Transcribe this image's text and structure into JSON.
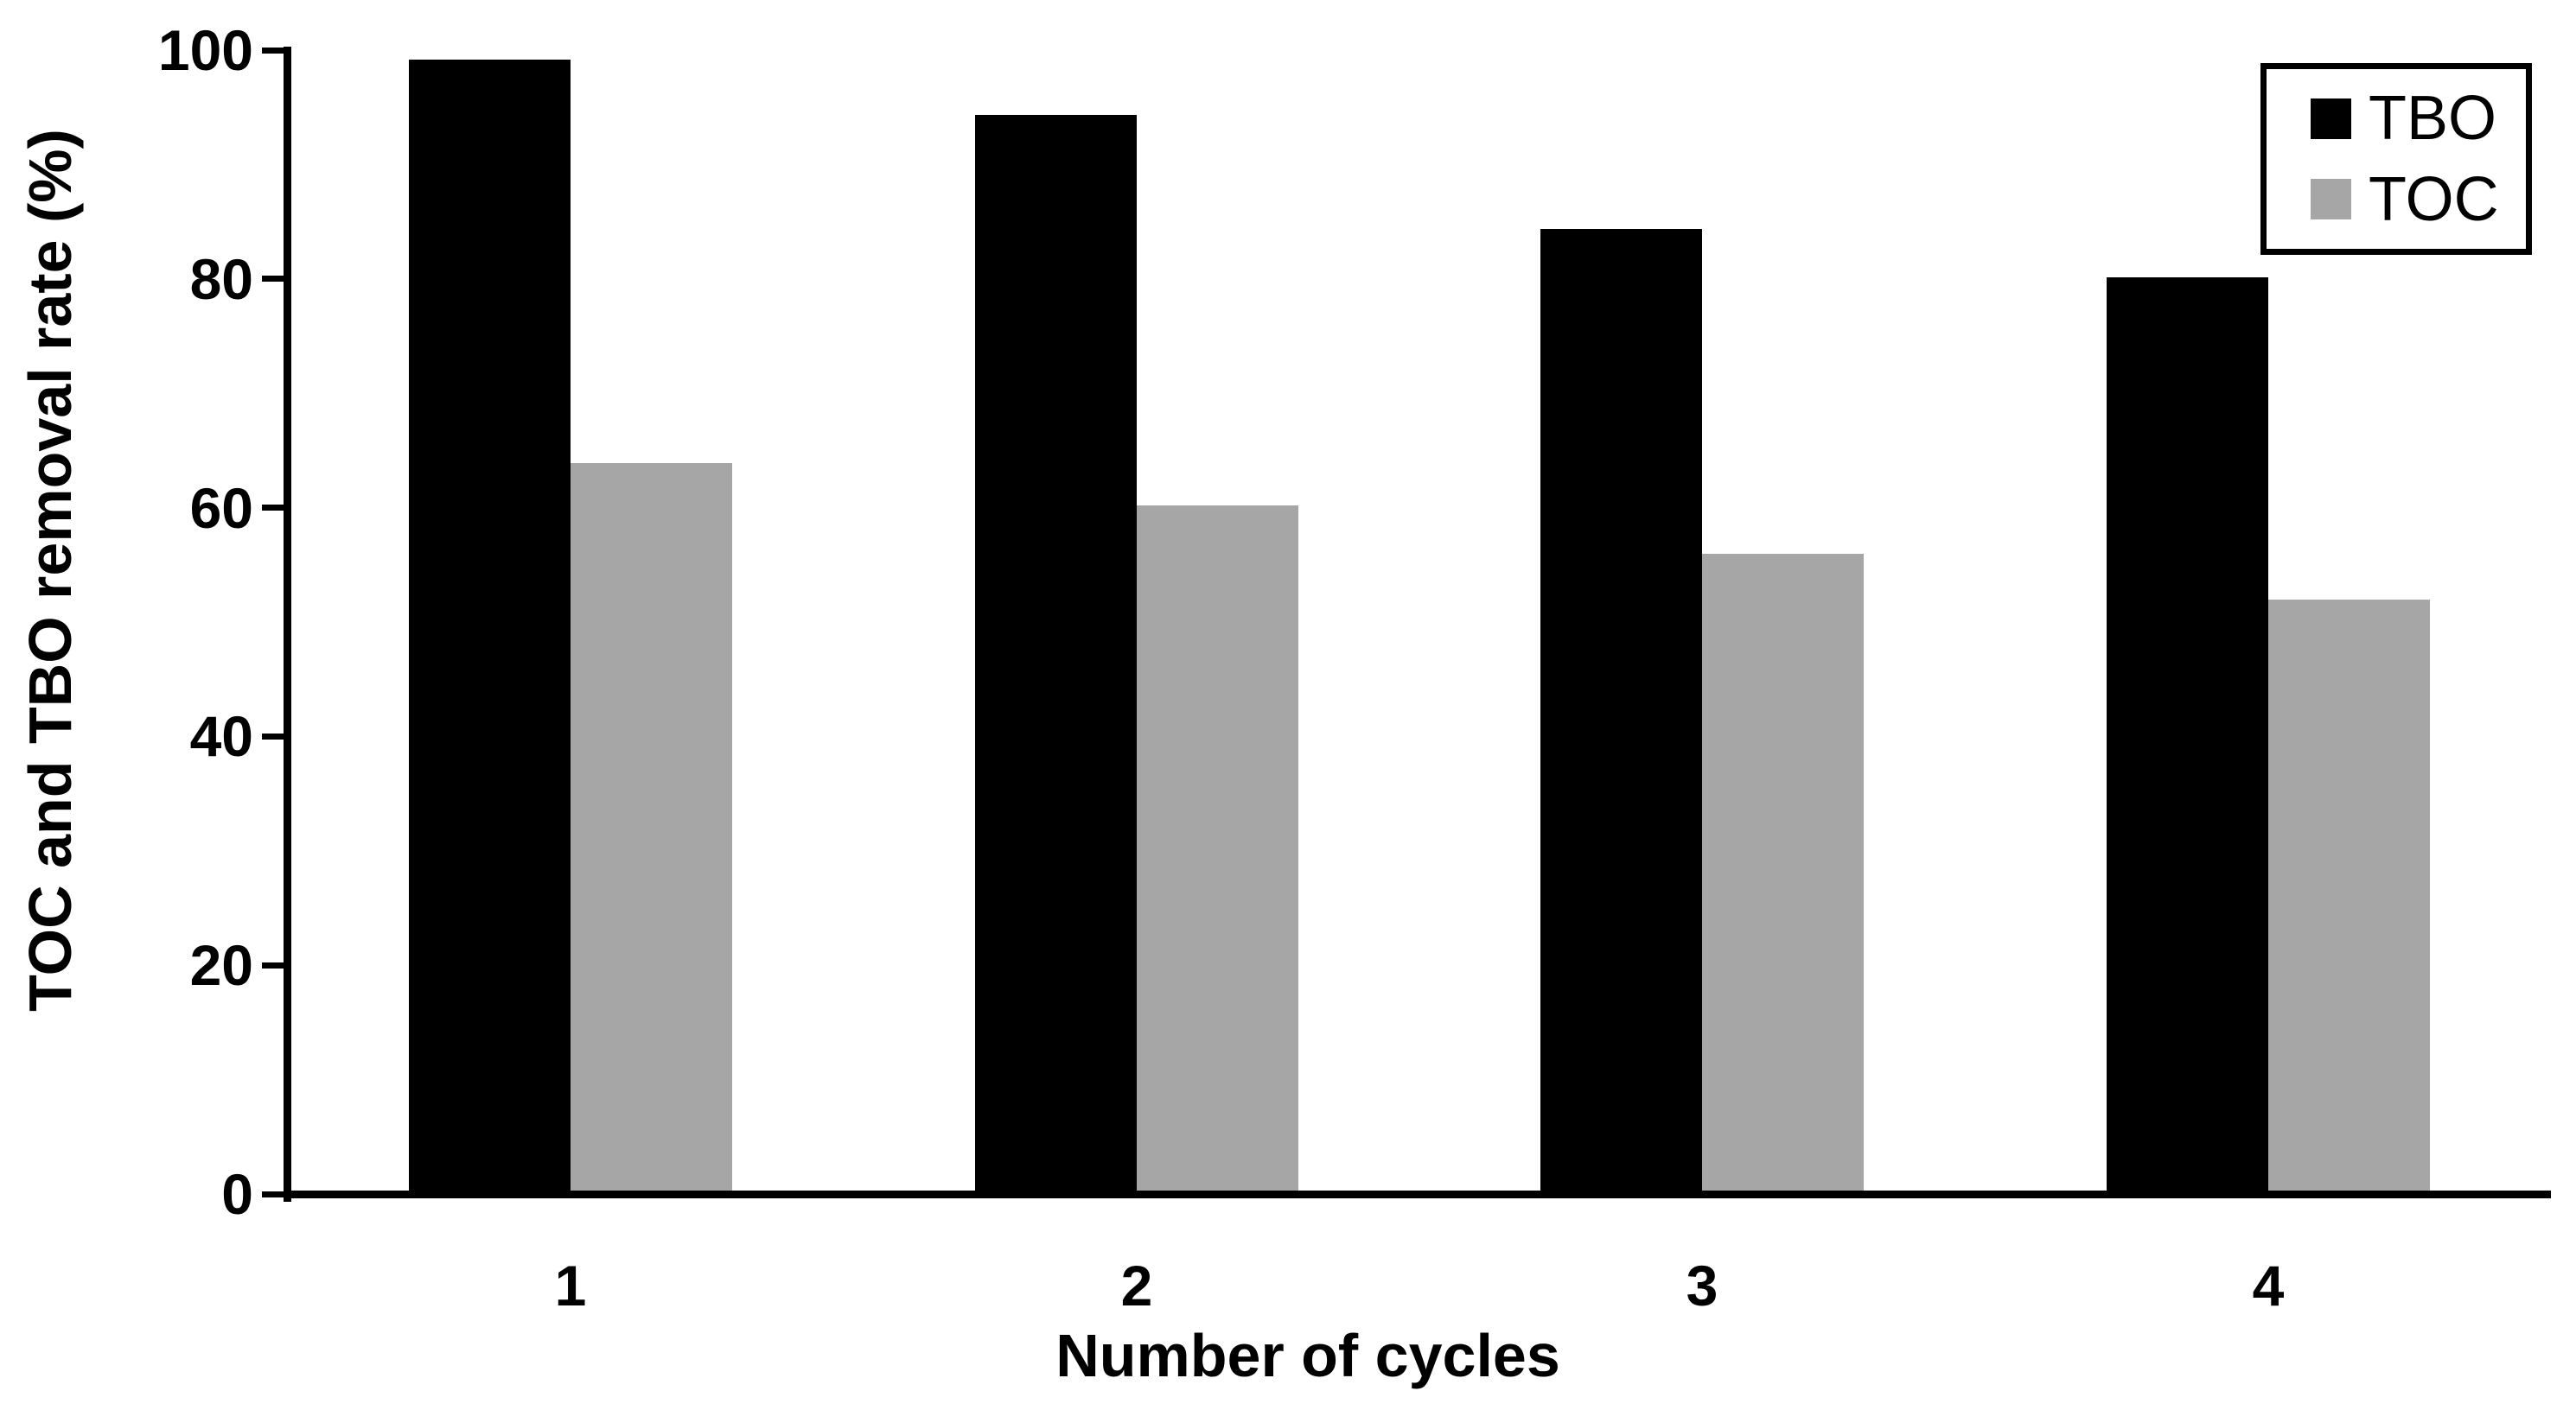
{
  "chart_data": {
    "type": "bar",
    "title": "",
    "categories": [
      "1",
      "2",
      "3",
      "4"
    ],
    "series": [
      {
        "name": "TBO",
        "color": "#000000",
        "values": [
          99.2,
          94.3,
          84.4,
          80.1
        ]
      },
      {
        "name": "TOC",
        "color": "#a6a6a6",
        "values": [
          63.9,
          60.2,
          56.0,
          52.0
        ]
      }
    ],
    "xlabel": "Number of cycles",
    "ylabel": "TOC and TBO removal rate (%)",
    "ylim": [
      0,
      100
    ],
    "yticks": [
      0,
      20,
      40,
      60,
      80,
      100
    ],
    "grid": false,
    "legend_position": "top-right",
    "legend_border": true
  },
  "legend": {
    "items": [
      {
        "label": "TBO",
        "color": "#000000"
      },
      {
        "label": "TOC",
        "color": "#a6a6a6"
      }
    ]
  },
  "colors": {
    "background": "#ffffff",
    "axis": "#000000",
    "tbo_bar": "#000000",
    "toc_bar": "#a6a6a6",
    "text": "#000000"
  }
}
